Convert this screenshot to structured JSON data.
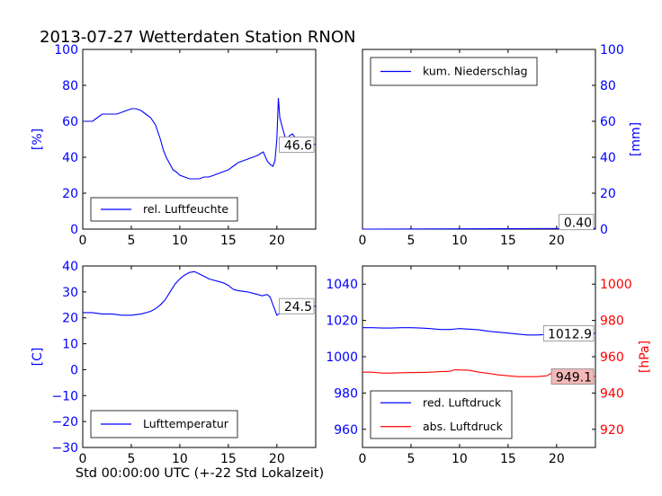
{
  "title": "2013-07-27 Wetterdaten Station RNON",
  "footer_label": "Std 00:00:00 UTC (+-22 Std Lokalzeit)",
  "colors": {
    "blue": "#0000ff",
    "red": "#ff0000",
    "red_box": "#f4b8b8"
  },
  "chart_data": [
    {
      "type": "line",
      "panel": "top-left",
      "ylabel": "[%]",
      "xlim": [
        0,
        24
      ],
      "ylim": [
        0,
        100
      ],
      "xticks": [
        0,
        5,
        10,
        15,
        20
      ],
      "yticks": [
        0,
        20,
        40,
        60,
        80,
        100
      ],
      "legend_loc": "lower-left",
      "series": [
        {
          "name": "rel. Luftfeuchte",
          "color": "#0000ff",
          "x": [
            0,
            0.5,
            1,
            1.5,
            2,
            2.5,
            3,
            3.5,
            4,
            4.5,
            5,
            5.5,
            6,
            6.5,
            7,
            7.5,
            8,
            8.3,
            8.6,
            9,
            9.3,
            9.6,
            10,
            10.5,
            11,
            11.5,
            12,
            12.5,
            13,
            13.5,
            14,
            14.5,
            15,
            15.5,
            16,
            16.5,
            17,
            17.5,
            18,
            18.3,
            18.6,
            19,
            19.3,
            19.6,
            19.8,
            20,
            20.15,
            20.3,
            20.5,
            20.8,
            21,
            21.3,
            21.6,
            22,
            23,
            24
          ],
          "y": [
            60,
            60,
            60,
            62,
            64,
            64,
            64,
            64,
            65,
            66,
            67,
            67,
            66,
            64,
            62,
            58,
            50,
            44,
            40,
            36,
            33,
            32,
            30,
            29,
            28,
            28,
            28,
            29,
            29,
            30,
            31,
            32,
            33,
            35,
            37,
            38,
            39,
            40,
            41,
            42,
            43,
            38,
            36,
            35,
            38,
            50,
            73,
            62,
            58,
            52,
            48,
            52,
            53,
            50,
            49,
            47
          ]
        }
      ],
      "value_label": "46.6"
    },
    {
      "type": "line",
      "panel": "top-right",
      "ylabel": "[mm]",
      "xlim": [
        0,
        24
      ],
      "ylim": [
        0,
        100
      ],
      "xticks": [
        0,
        5,
        10,
        15,
        20
      ],
      "yticks": [
        0,
        20,
        40,
        60,
        80,
        100
      ],
      "legend_loc": "upper-left",
      "series": [
        {
          "name": "kum. Niederschlag",
          "color": "#0000ff",
          "x": [
            0,
            24
          ],
          "y": [
            0,
            0.4
          ]
        }
      ],
      "value_label": "0.40"
    },
    {
      "type": "line",
      "panel": "bottom-left",
      "ylabel": "[C]",
      "xlim": [
        0,
        24
      ],
      "ylim": [
        -30,
        40
      ],
      "xticks": [
        0,
        5,
        10,
        15,
        20
      ],
      "yticks": [
        -30,
        -20,
        -10,
        0,
        10,
        20,
        30,
        40
      ],
      "legend_loc": "lower-left",
      "series": [
        {
          "name": "Lufttemperatur",
          "color": "#0000ff",
          "x": [
            0,
            1,
            2,
            3,
            4,
            5,
            6,
            7,
            7.5,
            8,
            8.5,
            9,
            9.5,
            10,
            10.5,
            11,
            11.5,
            12,
            12.5,
            13,
            13.5,
            14,
            14.5,
            15,
            15.5,
            16,
            17,
            17.5,
            18,
            18.5,
            19,
            19.3,
            19.6,
            20,
            20.4,
            21,
            22,
            23,
            24
          ],
          "y": [
            22,
            22,
            21.5,
            21.5,
            21,
            21,
            21.5,
            22.5,
            23.5,
            25,
            27,
            30,
            33,
            35,
            36.5,
            37.5,
            37.8,
            37,
            36,
            35,
            34.5,
            34,
            33.5,
            32.5,
            31,
            30.5,
            30,
            29.5,
            29,
            28.5,
            29,
            28,
            25,
            21,
            22,
            23,
            23.5,
            24,
            24.5
          ]
        }
      ],
      "value_label": "24.5"
    },
    {
      "type": "line",
      "panel": "bottom-right",
      "y_left_label": "",
      "y_right_label": "[hPa]",
      "xlim": [
        0,
        24
      ],
      "ylim_left": [
        950,
        1050
      ],
      "ylim_right": [
        910,
        1010
      ],
      "xticks": [
        0,
        5,
        10,
        15,
        20
      ],
      "yticks_left": [
        960,
        980,
        1000,
        1020,
        1040
      ],
      "yticks_right": [
        920,
        940,
        960,
        980,
        1000
      ],
      "legend_loc": "lower-left",
      "series": [
        {
          "name": "red. Luftdruck",
          "color": "#0000ff",
          "axis": "left",
          "x": [
            0,
            1,
            2,
            3,
            4,
            5,
            6,
            7,
            8,
            9,
            10,
            11,
            12,
            13,
            14,
            15,
            16,
            17,
            18,
            19,
            20,
            21,
            22,
            23,
            24
          ],
          "y": [
            1016,
            1016,
            1015.8,
            1015.8,
            1016,
            1016,
            1015.8,
            1015.5,
            1015,
            1015,
            1015.5,
            1015.2,
            1014.8,
            1014,
            1013.5,
            1013,
            1012.5,
            1012,
            1012,
            1012.3,
            1013,
            1013,
            1012.8,
            1012.9,
            1012.9
          ]
        },
        {
          "name": "abs. Luftdruck",
          "color": "#ff0000",
          "axis": "right",
          "x": [
            0,
            1,
            2,
            3,
            4,
            5,
            6,
            7,
            8,
            9,
            9.5,
            10,
            11,
            12,
            13,
            14,
            15,
            16,
            17,
            18,
            19,
            19.5,
            20,
            21,
            22,
            23,
            24
          ],
          "y": [
            951.5,
            951.5,
            951,
            951,
            951.2,
            951.3,
            951.3,
            951.5,
            951.8,
            952,
            952.8,
            952.7,
            952.5,
            951.5,
            950.8,
            950,
            949.5,
            949,
            949,
            949,
            949.5,
            951,
            951.5,
            949.5,
            949.5,
            949.3,
            949.1
          ]
        }
      ],
      "value_label_left": "1012.9",
      "value_label_right": "949.1"
    }
  ]
}
